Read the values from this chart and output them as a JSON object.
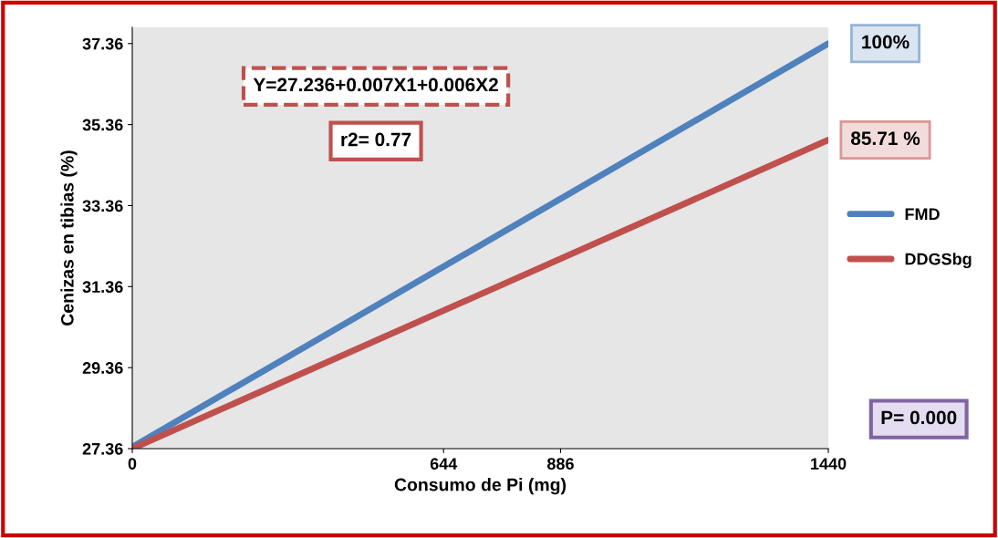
{
  "chart_data": {
    "type": "line",
    "xlabel": "Consumo de Pi (mg)",
    "ylabel": "Cenizas en tibias (%)",
    "x": [
      0,
      1440
    ],
    "xlim": [
      0,
      1440
    ],
    "xticks": [
      0,
      644,
      886,
      1440
    ],
    "ylim": [
      27.36,
      37.76
    ],
    "yticks": [
      {
        "value": 27.36,
        "label": "27.36"
      },
      {
        "value": 29.36,
        "label": "29.36"
      },
      {
        "value": 31.36,
        "label": "31.36"
      },
      {
        "value": 33.36,
        "label": "33.36"
      },
      {
        "value": 35.36,
        "label": "35.36"
      },
      {
        "value": 37.36,
        "label": "37.36"
      }
    ],
    "series": [
      {
        "name": "FMD",
        "color": "#4f81bd",
        "values": [
          27.4,
          37.36
        ]
      },
      {
        "name": "DDGSbg",
        "color": "#c0504d",
        "values": [
          27.36,
          34.98
        ]
      }
    ],
    "annotations": [
      "Y=27.236+0.007X1+0.006X2",
      "r2= 0.77",
      {
        "text": "100%",
        "x": 1440,
        "y": 37.36
      },
      {
        "text": "85.71 %",
        "x": 1440,
        "y": 34.98
      },
      "P= 0.000"
    ],
    "legend": "right",
    "grid": false,
    "marker": "none",
    "line_style": "solid"
  }
}
